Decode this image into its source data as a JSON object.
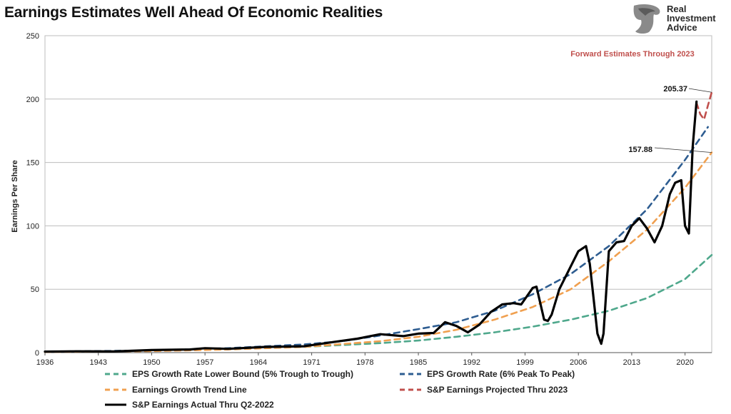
{
  "chart_data": {
    "type": "line",
    "title": "Earnings Estimates Well Ahead Of Economic Realities",
    "ylabel": "Earnings Per Share",
    "xlabel": "",
    "ylim": [
      0,
      250
    ],
    "xlim": [
      1936,
      2023.5
    ],
    "yticks": [
      0,
      50,
      100,
      150,
      200,
      250
    ],
    "xticks": [
      "1936",
      "1943",
      "1950",
      "1957",
      "1964",
      "1971",
      "1978",
      "1985",
      "1992",
      "1999",
      "2006",
      "2013",
      "2020"
    ],
    "grid": "horizontal",
    "legend_position": "bottom",
    "annotation_top": "Forward Estimates Through 2023",
    "label_a": "205.37",
    "label_b": "157.88",
    "series": [
      {
        "name": "EPS Growth Rate Lower Bound (5% Trough to Trough)",
        "color": "#4fa88c",
        "style": "dashed",
        "x": [
          1936,
          1950,
          1960,
          1970,
          1980,
          1985,
          1990,
          1995,
          2000,
          2005,
          2010,
          2015,
          2020,
          2023.5
        ],
        "y": [
          0.8,
          1.6,
          2.8,
          4.5,
          7.5,
          9.5,
          12.5,
          16,
          20.5,
          26,
          33,
          43,
          58,
          77
        ]
      },
      {
        "name": "EPS Growth Rate (6% Peak To Peak)",
        "color": "#2e5d91",
        "style": "dashed",
        "x": [
          1936,
          1950,
          1960,
          1970,
          1975,
          1980,
          1985,
          1990,
          1995,
          2000,
          2005,
          2010,
          2015,
          2020,
          2023
        ],
        "y": [
          0.8,
          1.7,
          3.5,
          6.5,
          9,
          13.5,
          18.5,
          24,
          33,
          46,
          62,
          84,
          113,
          152,
          178
        ]
      },
      {
        "name": "Earnings Growth Trend Line",
        "color": "#f0a050",
        "style": "dashed",
        "x": [
          1936,
          1950,
          1960,
          1970,
          1980,
          1985,
          1990,
          1995,
          2000,
          2005,
          2010,
          2015,
          2020,
          2023.5
        ],
        "y": [
          0.5,
          1.2,
          2.5,
          4.5,
          9,
          12.5,
          18,
          26,
          36,
          50,
          72,
          97,
          130,
          157.88
        ]
      },
      {
        "name": "S&P Earnings Projected Thru 2023",
        "color": "#c0504d",
        "style": "dashed",
        "x": [
          2021.5,
          2022,
          2022.5,
          2023,
          2023.5
        ],
        "y": [
          197,
          188,
          184,
          195,
          205.37
        ]
      },
      {
        "name": "S&P Earnings Actual Thru Q2-2022",
        "color": "#000000",
        "style": "solid",
        "x": [
          1936,
          1940,
          1945,
          1950,
          1955,
          1957,
          1960,
          1965,
          1970,
          1974,
          1977,
          1980,
          1983,
          1985,
          1987,
          1988.5,
          1990,
          1991.5,
          1993,
          1994.5,
          1996,
          1997.5,
          1998.5,
          2000,
          2000.5,
          2001.5,
          2002,
          2002.5,
          2003.5,
          2005,
          2006,
          2007,
          2007.5,
          2008.5,
          2009,
          2009.3,
          2010,
          2011,
          2012,
          2013,
          2014,
          2015,
          2016,
          2017,
          2018,
          2018.7,
          2019.5,
          2020,
          2020.5,
          2021,
          2021.5
        ],
        "y": [
          0.8,
          1.0,
          0.9,
          2.0,
          2.5,
          3.5,
          3.0,
          4.5,
          5.0,
          8.5,
          11.0,
          14.5,
          13.0,
          15.0,
          15.5,
          24.0,
          21.0,
          16.0,
          22.0,
          32.0,
          38.0,
          39.0,
          38.0,
          51.0,
          52.0,
          26.0,
          25.0,
          30.0,
          50.0,
          68.0,
          80.0,
          84.0,
          70.0,
          15.0,
          7.0,
          15.0,
          80.0,
          87.0,
          88.0,
          100.0,
          106.0,
          98.0,
          87.0,
          100.0,
          125.0,
          134.0,
          136.0,
          100.0,
          94.0,
          162.0,
          198.0
        ]
      }
    ]
  }
}
